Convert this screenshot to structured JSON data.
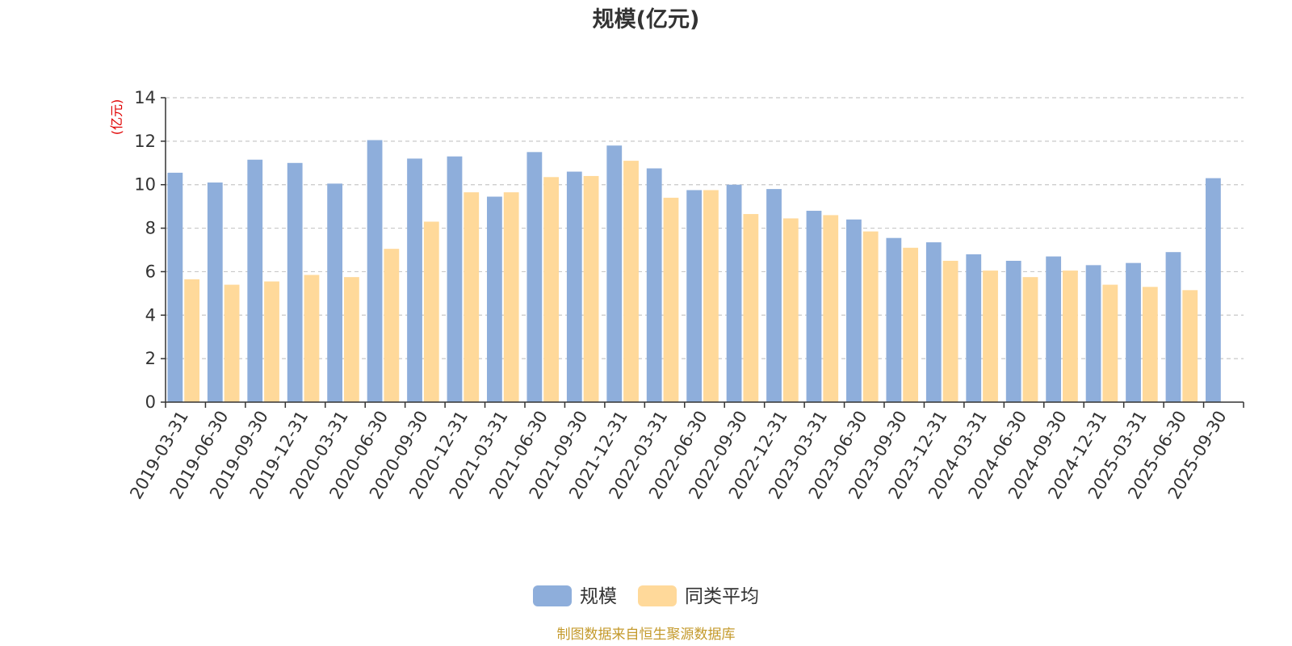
{
  "colors": {
    "series_1": "#8eaedb",
    "series_2": "#ffd99a",
    "grid": "#c8c8c8",
    "axis": "#333333",
    "unit_label": "#e00000",
    "source": "#c49a2c"
  },
  "footer": {
    "source": "制图数据来自恒生聚源数据库"
  },
  "chart_data": {
    "type": "bar",
    "title": "规模(亿元)",
    "ylabel": "(亿元)",
    "xlabel": "",
    "ylim": [
      0,
      14
    ],
    "yticks": [
      0,
      2,
      4,
      6,
      8,
      10,
      12,
      14
    ],
    "grid": true,
    "grid_style": "dashed horizontal",
    "legend_position": "bottom-center",
    "categories": [
      "2019-03-31",
      "2019-06-30",
      "2019-09-30",
      "2019-12-31",
      "2020-03-31",
      "2020-06-30",
      "2020-09-30",
      "2020-12-31",
      "2021-03-31",
      "2021-06-30",
      "2021-09-30",
      "2021-12-31",
      "2022-03-31",
      "2022-06-30",
      "2022-09-30",
      "2022-12-31",
      "2023-03-31",
      "2023-06-30",
      "2023-09-30",
      "2023-12-31",
      "2024-03-31",
      "2024-06-30",
      "2024-09-30",
      "2024-12-31",
      "2025-03-31",
      "2025-06-30",
      "2025-09-30"
    ],
    "series": [
      {
        "name": "规模",
        "values": [
          10.55,
          10.1,
          11.15,
          11.0,
          10.05,
          12.05,
          11.2,
          11.3,
          9.45,
          11.5,
          10.6,
          11.8,
          10.75,
          9.75,
          10.0,
          9.8,
          8.8,
          8.4,
          7.55,
          7.35,
          6.8,
          6.5,
          6.7,
          6.3,
          6.4,
          6.9,
          10.3
        ]
      },
      {
        "name": "同类平均",
        "values": [
          5.65,
          5.4,
          5.55,
          5.85,
          5.75,
          7.05,
          8.3,
          9.65,
          9.65,
          10.35,
          10.4,
          11.1,
          9.4,
          9.75,
          8.65,
          8.45,
          8.6,
          7.85,
          7.1,
          6.5,
          6.05,
          5.75,
          6.05,
          5.4,
          5.3,
          5.15,
          null
        ]
      }
    ]
  }
}
